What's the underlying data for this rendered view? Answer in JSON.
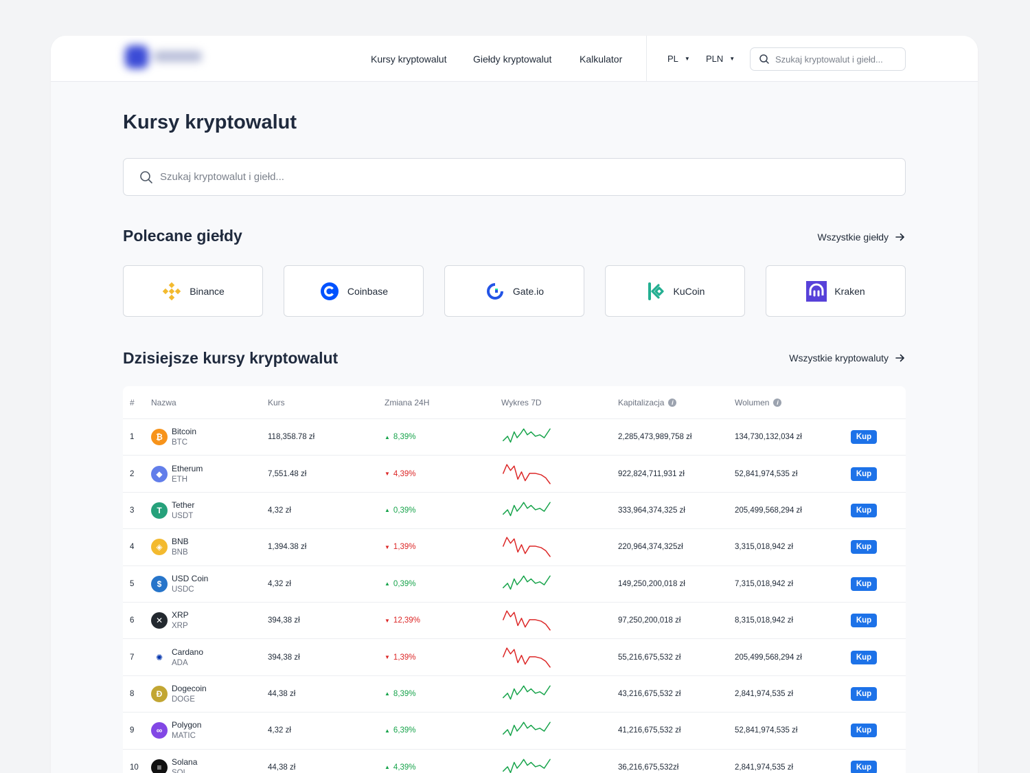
{
  "header": {
    "nav": [
      "Kursy kryptowalut",
      "Giełdy kryptowalut",
      "Kalkulator"
    ],
    "language": "PL",
    "currency": "PLN",
    "search_placeholder": "Szukaj kryptowalut i giełd..."
  },
  "page": {
    "title": "Kursy kryptowalut",
    "search_placeholder": "Szukaj kryptowalut i giełd..."
  },
  "exchanges": {
    "title": "Polecane giełdy",
    "see_all": "Wszystkie giełdy",
    "items": [
      {
        "name": "Binance",
        "icon": "binance-logo"
      },
      {
        "name": "Coinbase",
        "icon": "coinbase-logo"
      },
      {
        "name": "Gate.io",
        "icon": "gateio-logo"
      },
      {
        "name": "KuCoin",
        "icon": "kucoin-logo"
      },
      {
        "name": "Kraken",
        "icon": "kraken-logo"
      }
    ]
  },
  "rates": {
    "title": "Dzisiejsze kursy kryptowalut",
    "see_all": "Wszystkie kryptowaluty",
    "columns": [
      "#",
      "Nazwa",
      "Kurs",
      "Zmiana 24H",
      "Wykres 7D",
      "Kapitalizacja",
      "Wolumen"
    ],
    "buy_label": "Kup",
    "rows": [
      {
        "rank": "1",
        "name": "Bitcoin",
        "symbol": "BTC",
        "price": "118,358.78 zł",
        "change": "8,39%",
        "dir": "up",
        "cap": "2,285,473,989,758 zł",
        "vol": "134,730,132,034 zł",
        "icon": "bitcoin-icon",
        "color": "#f7931a",
        "glyph": "₿"
      },
      {
        "rank": "2",
        "name": "Etherum",
        "symbol": "ETH",
        "price": "7,551.48 zł",
        "change": "4,39%",
        "dir": "down",
        "cap": "922,824,711,931 zł",
        "vol": "52,841,974,535 zł",
        "icon": "ethereum-icon",
        "color": "#627eea",
        "glyph": "◆"
      },
      {
        "rank": "3",
        "name": "Tether",
        "symbol": "USDT",
        "price": "4,32 zł",
        "change": "0,39%",
        "dir": "up",
        "cap": "333,964,374,325 zł",
        "vol": "205,499,568,294 zł",
        "icon": "tether-icon",
        "color": "#26a17b",
        "glyph": "T"
      },
      {
        "rank": "4",
        "name": "BNB",
        "symbol": "BNB",
        "price": "1,394.38 zł",
        "change": "1,39%",
        "dir": "down",
        "cap": "220,964,374,325zł",
        "vol": "3,315,018,942 zł",
        "icon": "bnb-icon",
        "color": "#f3ba2f",
        "glyph": "◈"
      },
      {
        "rank": "5",
        "name": "USD Coin",
        "symbol": "USDC",
        "price": "4,32 zł",
        "change": "0,39%",
        "dir": "up",
        "cap": "149,250,200,018 zł",
        "vol": "7,315,018,942 zł",
        "icon": "usdc-icon",
        "color": "#2775ca",
        "glyph": "$"
      },
      {
        "rank": "6",
        "name": "XRP",
        "symbol": "XRP",
        "price": "394,38 zł",
        "change": "12,39%",
        "dir": "down",
        "cap": "97,250,200,018 zł",
        "vol": "8,315,018,942 zł",
        "icon": "xrp-icon",
        "color": "#23292f",
        "glyph": "✕"
      },
      {
        "rank": "7",
        "name": "Cardano",
        "symbol": "ADA",
        "price": "394,38 zł",
        "change": "1,39%",
        "dir": "down",
        "cap": "55,216,675,532 zł",
        "vol": "205,499,568,294 zł",
        "icon": "cardano-icon",
        "color": "#ffffff",
        "glyph": "✺"
      },
      {
        "rank": "8",
        "name": "Dogecoin",
        "symbol": "DOGE",
        "price": "44,38 zł",
        "change": "8,39%",
        "dir": "up",
        "cap": "43,216,675,532 zł",
        "vol": "2,841,974,535 zł",
        "icon": "dogecoin-icon",
        "color": "#c2a633",
        "glyph": "Ð"
      },
      {
        "rank": "9",
        "name": "Polygon",
        "symbol": "MATIC",
        "price": "4,32 zł",
        "change": "6,39%",
        "dir": "up",
        "cap": "41,216,675,532 zł",
        "vol": "52,841,974,535 zł",
        "icon": "polygon-icon",
        "color": "#8247e5",
        "glyph": "∞"
      },
      {
        "rank": "10",
        "name": "Solana",
        "symbol": "SOL",
        "price": "44,38 zł",
        "change": "4,39%",
        "dir": "up",
        "cap": "36,216,675,532zł",
        "vol": "2,841,974,535 zł",
        "icon": "solana-icon",
        "color": "#111111",
        "glyph": "≡"
      }
    ]
  },
  "colors": {
    "accent": "#1d72e8",
    "up": "#16a34a",
    "down": "#dc2626"
  }
}
